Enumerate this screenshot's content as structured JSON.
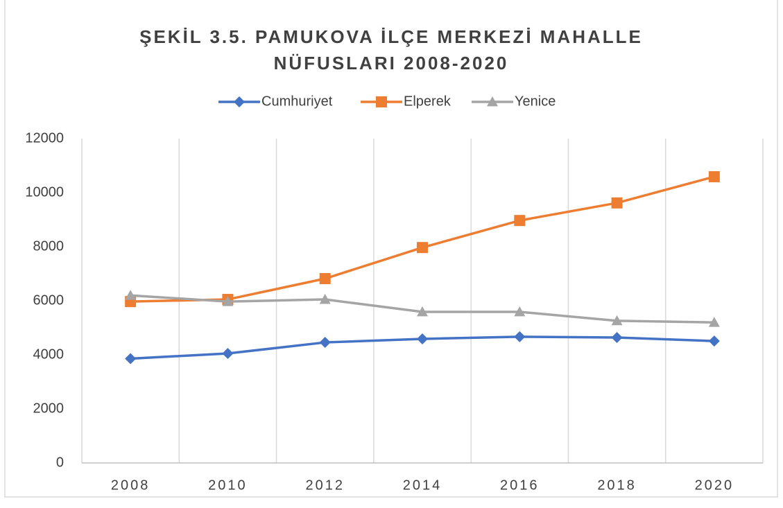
{
  "chart_data": {
    "type": "line",
    "title": "ŞEKİL 3.5. PAMUKOVA İLÇE MERKEZİ MAHALLE NÜFUSLARI 2008-2020",
    "categories": [
      "2008",
      "2010",
      "2012",
      "2014",
      "2016",
      "2018",
      "2020"
    ],
    "series": [
      {
        "name": "Cumhuriyet",
        "color": "#4472c4",
        "marker": "diamond",
        "values": [
          3860,
          4050,
          4460,
          4590,
          4670,
          4640,
          4510
        ]
      },
      {
        "name": "Elperek",
        "color": "#ed7d31",
        "marker": "square",
        "values": [
          5970,
          6050,
          6820,
          7970,
          8970,
          9620,
          10590
        ]
      },
      {
        "name": "Yenice",
        "color": "#a5a5a5",
        "marker": "triangle",
        "values": [
          6200,
          5970,
          6050,
          5590,
          5590,
          5260,
          5200
        ]
      }
    ],
    "ylim": [
      0,
      12000
    ],
    "yticks": [
      0,
      2000,
      4000,
      6000,
      8000,
      10000,
      12000
    ],
    "grid": "x",
    "legend": "top"
  }
}
